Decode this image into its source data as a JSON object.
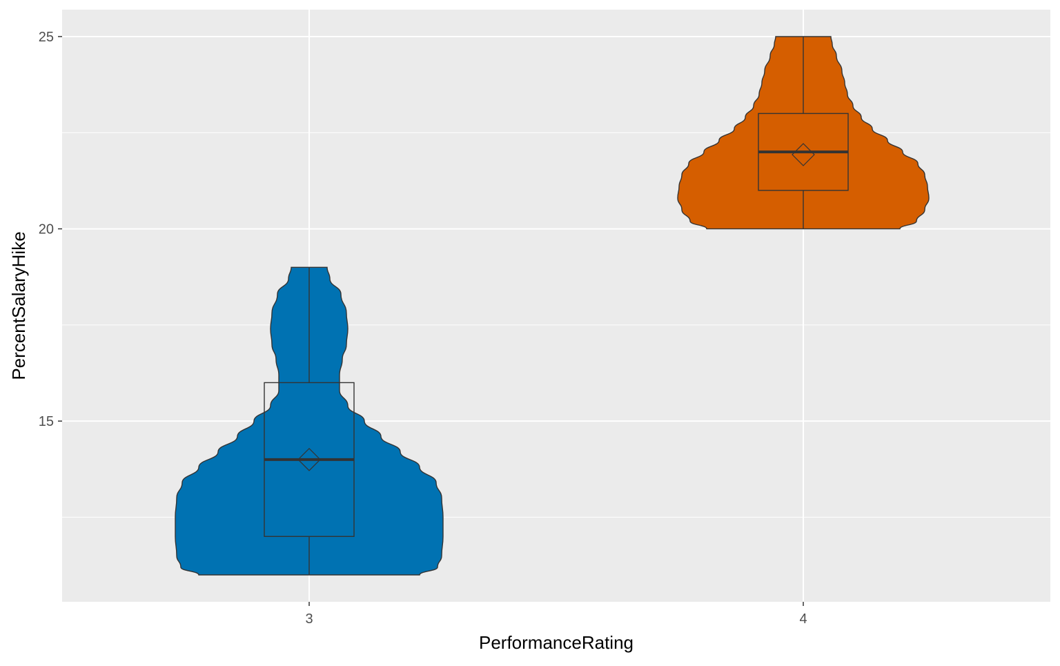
{
  "chart_data": {
    "type": "violin",
    "xlabel": "PerformanceRating",
    "ylabel": "PercentSalaryHike",
    "categories": [
      "3",
      "4"
    ],
    "ylim": [
      10.3,
      25.7
    ],
    "y_ticks": [
      15,
      20,
      25
    ],
    "y_minor_ticks": [
      12.5,
      17.5,
      22.5
    ],
    "grid": true,
    "panel_background": "#EBEBEB",
    "grid_color": "#FFFFFF",
    "series": [
      {
        "category": "3",
        "color": "#0072B2",
        "min": 11,
        "q1": 12,
        "median": 14,
        "q3": 16,
        "max": 19,
        "mean": 14.0,
        "density_profile": [
          [
            11.0,
            0.8
          ],
          [
            11.2,
            0.93
          ],
          [
            11.5,
            0.96
          ],
          [
            12.0,
            0.97
          ],
          [
            12.5,
            0.97
          ],
          [
            13.0,
            0.96
          ],
          [
            13.4,
            0.92
          ],
          [
            13.8,
            0.8
          ],
          [
            14.2,
            0.66
          ],
          [
            14.6,
            0.52
          ],
          [
            15.0,
            0.4
          ],
          [
            15.4,
            0.28
          ],
          [
            15.8,
            0.22
          ],
          [
            16.2,
            0.22
          ],
          [
            16.6,
            0.24
          ],
          [
            17.0,
            0.27
          ],
          [
            17.4,
            0.28
          ],
          [
            17.8,
            0.27
          ],
          [
            18.3,
            0.23
          ],
          [
            18.7,
            0.15
          ],
          [
            19.0,
            0.13
          ]
        ]
      },
      {
        "category": "4",
        "color": "#D55E00",
        "min": 20,
        "q1": 21,
        "median": 22,
        "q3": 23,
        "max": 25,
        "mean": 21.93,
        "density_profile": [
          [
            20.0,
            0.7
          ],
          [
            20.2,
            0.82
          ],
          [
            20.5,
            0.88
          ],
          [
            20.8,
            0.91
          ],
          [
            21.1,
            0.9
          ],
          [
            21.4,
            0.88
          ],
          [
            21.7,
            0.83
          ],
          [
            22.0,
            0.72
          ],
          [
            22.3,
            0.61
          ],
          [
            22.6,
            0.5
          ],
          [
            22.9,
            0.42
          ],
          [
            23.2,
            0.36
          ],
          [
            23.5,
            0.32
          ],
          [
            23.8,
            0.3
          ],
          [
            24.1,
            0.28
          ],
          [
            24.5,
            0.24
          ],
          [
            24.8,
            0.21
          ],
          [
            25.0,
            0.2
          ]
        ]
      }
    ]
  }
}
